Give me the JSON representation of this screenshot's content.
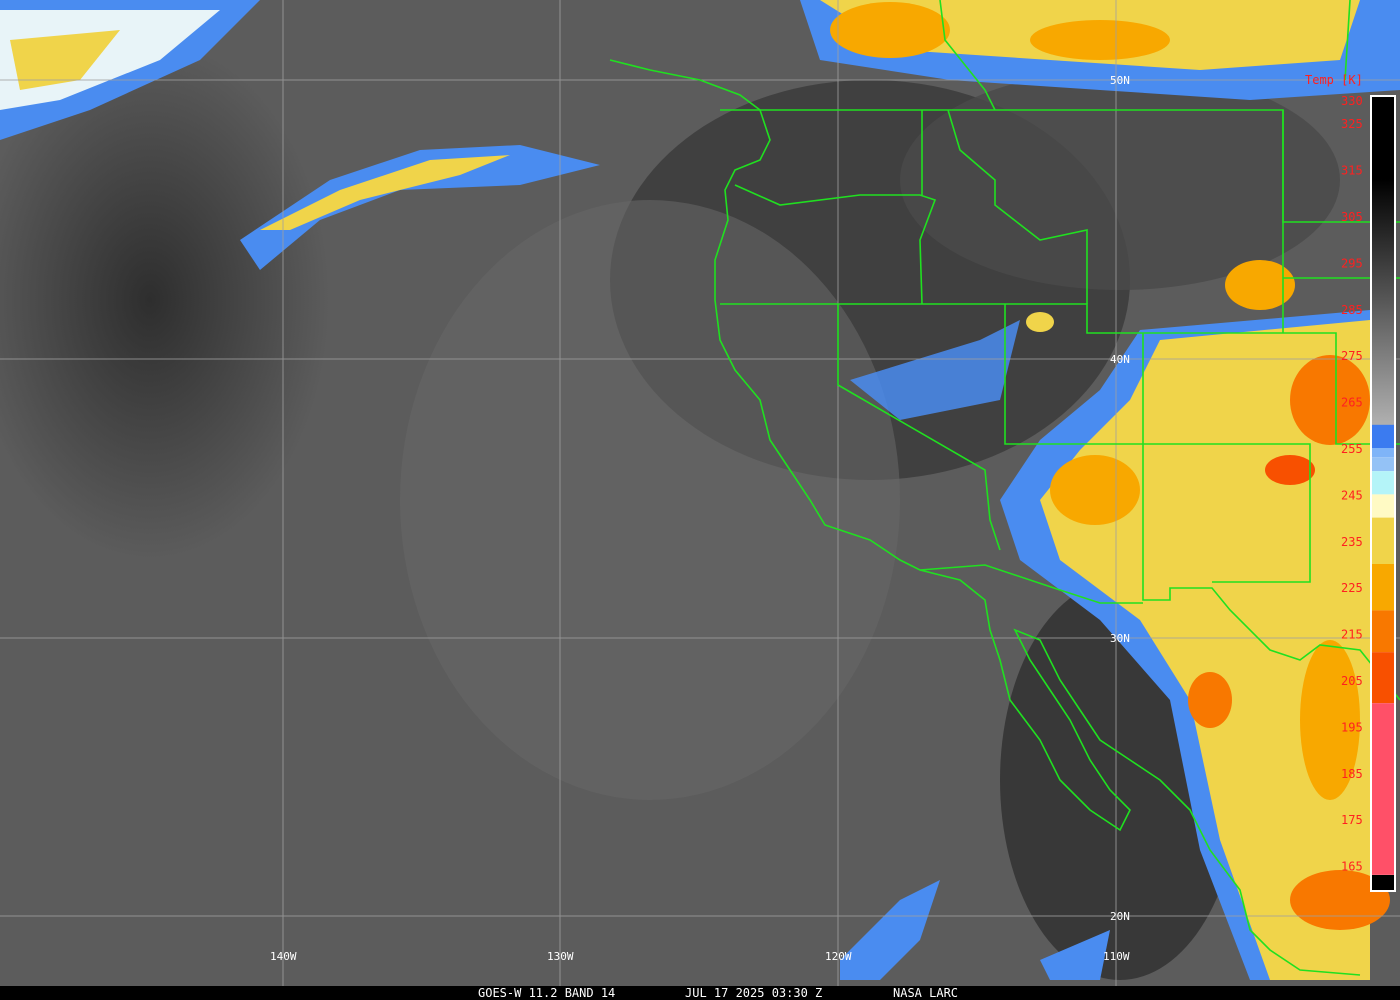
{
  "caption": {
    "satellite": "GOES-W 11.2 BAND 14",
    "datetime": "JUL 17 2025 03:30 Z",
    "credit": "NASA LARC"
  },
  "graticule": {
    "longitudes": [
      "140W",
      "130W",
      "120W",
      "110W"
    ],
    "latitudes": [
      "50N",
      "40N",
      "30N",
      "20N"
    ]
  },
  "colorbar": {
    "title": "Temp [K]",
    "ticks": [
      "330",
      "325",
      "315",
      "305",
      "295",
      "285",
      "275",
      "265",
      "255",
      "245",
      "235",
      "225",
      "215",
      "205",
      "195",
      "185",
      "175",
      "165"
    ],
    "segments": [
      {
        "from": 260,
        "to": 255,
        "color": "#3b7bf0"
      },
      {
        "from": 255,
        "to": 253,
        "color": "#7fb4f8"
      },
      {
        "from": 253,
        "to": 250,
        "color": "#94c2f6"
      },
      {
        "from": 250,
        "to": 245,
        "color": "#b4f4f8"
      },
      {
        "from": 245,
        "to": 240,
        "color": "#fffac4"
      },
      {
        "from": 240,
        "to": 230,
        "color": "#f0d44a"
      },
      {
        "from": 230,
        "to": 220,
        "color": "#f8a800"
      },
      {
        "from": 220,
        "to": 211,
        "color": "#f87800"
      },
      {
        "from": 211,
        "to": 200,
        "color": "#f85000"
      },
      {
        "from": 200,
        "to": 163,
        "color": "#ff5068"
      }
    ],
    "gray_range": [
      330,
      260
    ]
  },
  "colors": {
    "border": "#20e020",
    "grid": "#a0a0a0",
    "tick": "#ff2020"
  }
}
